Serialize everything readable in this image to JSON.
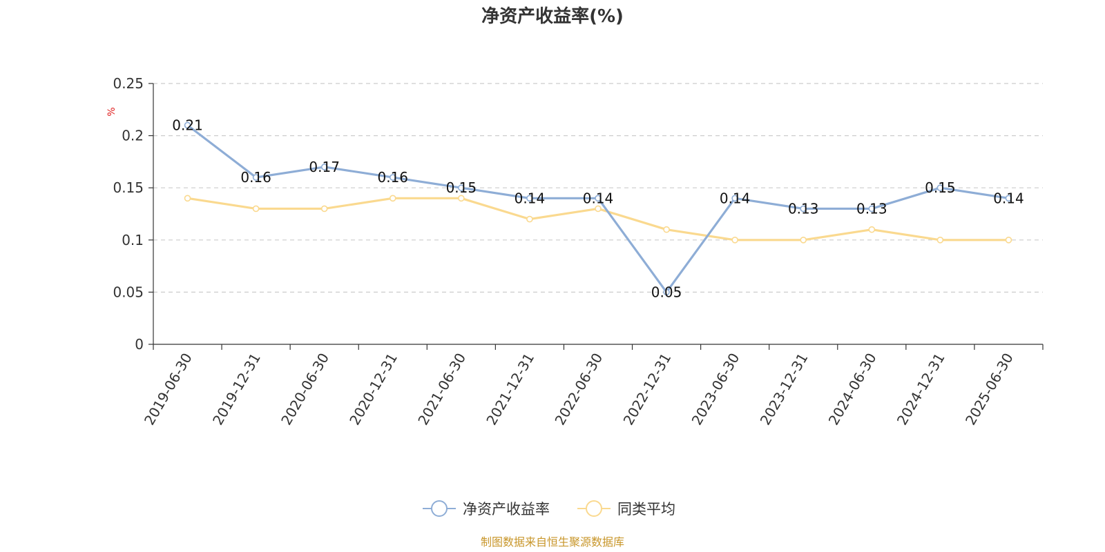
{
  "chart_data": {
    "type": "line",
    "title": "净资产收益率(%)",
    "ylabel": "%",
    "ylim": [
      0,
      0.25
    ],
    "yticks": [
      0,
      0.05,
      0.1,
      0.15,
      0.2,
      0.25
    ],
    "ytick_labels": [
      "0",
      "0.05",
      "0.1",
      "0.15",
      "0.2",
      "0.25"
    ],
    "grid": "horizontal-dashed",
    "legend_position": "bottom-center",
    "categories": [
      "2019-06-30",
      "2019-12-31",
      "2020-06-30",
      "2020-12-31",
      "2021-06-30",
      "2021-12-31",
      "2022-06-30",
      "2022-12-31",
      "2023-06-30",
      "2023-12-31",
      "2024-06-30",
      "2024-12-31",
      "2025-06-30"
    ],
    "series": [
      {
        "name": "净资产收益率",
        "color": "#8eadd6",
        "show_labels": true,
        "values": [
          0.21,
          0.16,
          0.17,
          0.16,
          0.15,
          0.14,
          0.14,
          0.05,
          0.14,
          0.13,
          0.13,
          0.15,
          0.14
        ]
      },
      {
        "name": "同类平均",
        "color": "#fad98f",
        "show_labels": false,
        "values": [
          0.14,
          0.13,
          0.13,
          0.14,
          0.14,
          0.12,
          0.13,
          0.11,
          0.1,
          0.1,
          0.11,
          0.1,
          0.1
        ]
      }
    ]
  },
  "source": "制图数据来自恒生聚源数据库"
}
